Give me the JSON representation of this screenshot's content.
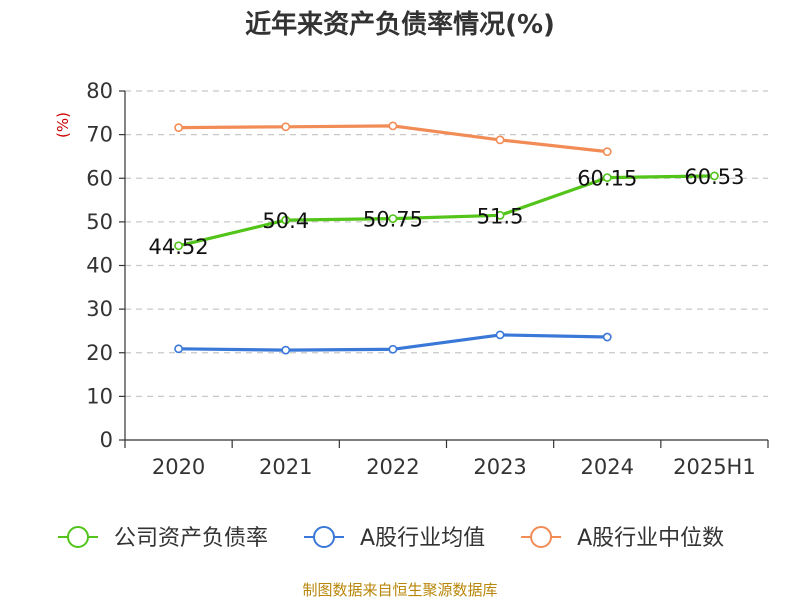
{
  "chart_data": {
    "type": "line",
    "title": "近年来资产负债率情况(%)",
    "ylabel": "(%)",
    "xlabel": "",
    "categories": [
      "2020",
      "2021",
      "2022",
      "2023",
      "2024",
      "2025H1"
    ],
    "ylim": [
      0,
      80
    ],
    "yticks": [
      0,
      10,
      20,
      30,
      40,
      50,
      60,
      70,
      80
    ],
    "grid": true,
    "legend_position": "bottom",
    "series": [
      {
        "name": "公司资产负债率",
        "color": "#52c41a",
        "values": [
          44.52,
          50.4,
          50.75,
          51.5,
          60.15,
          60.53
        ],
        "show_labels": true
      },
      {
        "name": "A股行业均值",
        "color": "#3a78d8",
        "values": [
          20.9,
          20.6,
          20.8,
          24.1,
          23.6,
          null
        ],
        "show_labels": false
      },
      {
        "name": "A股行业中位数",
        "color": "#f28c56",
        "values": [
          71.6,
          71.8,
          72.0,
          68.8,
          66.1,
          null
        ],
        "show_labels": false
      }
    ]
  },
  "source": "制图数据来自恒生聚源数据库"
}
